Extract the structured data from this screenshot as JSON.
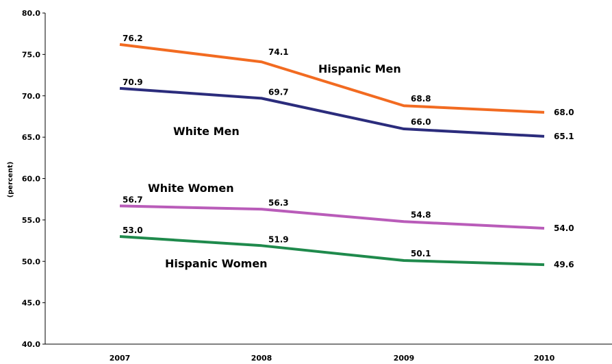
{
  "chart_data": {
    "type": "line",
    "title": "",
    "xlabel": "",
    "ylabel": "(percent)",
    "categories": [
      "2007",
      "2008",
      "2009",
      "2010"
    ],
    "ylim": [
      40,
      80
    ],
    "yticks": [
      "40.0",
      "45.0",
      "50.0",
      "55.0",
      "60.0",
      "65.0",
      "70.0",
      "75.0",
      "80.0"
    ],
    "grid": false,
    "series": [
      {
        "name": "Hispanic Men",
        "color": "#f26b21",
        "values": [
          76.2,
          74.1,
          68.8,
          68.0
        ],
        "labels": [
          "76.2",
          "74.1",
          "68.8",
          "68.0"
        ]
      },
      {
        "name": "White Men",
        "color": "#2b2c7c",
        "values": [
          70.9,
          69.7,
          66.0,
          65.1
        ],
        "labels": [
          "70.9",
          "69.7",
          "66.0",
          "65.1"
        ]
      },
      {
        "name": "White Women",
        "color": "#b95cb9",
        "values": [
          56.7,
          56.3,
          54.8,
          54.0
        ],
        "labels": [
          "56.7",
          "56.3",
          "54.8",
          "54.0"
        ]
      },
      {
        "name": "Hispanic Women",
        "color": "#1f8a4c",
        "values": [
          53.0,
          51.9,
          50.1,
          49.6
        ],
        "labels": [
          "53.0",
          "51.9",
          "50.1",
          "49.6"
        ]
      }
    ]
  }
}
